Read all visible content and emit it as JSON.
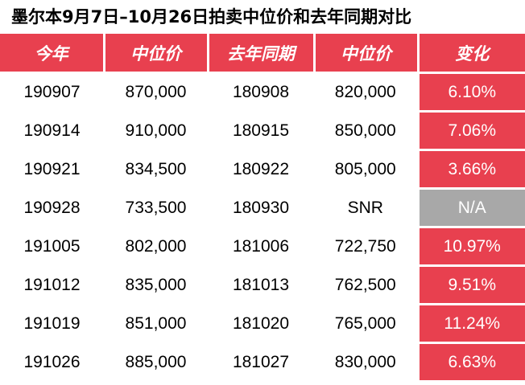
{
  "title": "墨尔本9月7日–10月26日拍卖中位价和去年同期对比",
  "colors": {
    "accent": "#e8404f",
    "na_gray": "#a8a8a8"
  },
  "table": {
    "columns": [
      "今年",
      "中位价",
      "去年同期",
      "中位价",
      "变化"
    ],
    "rows": [
      {
        "this_year": "190907",
        "median": "870,000",
        "last_year": "180908",
        "last_median": "820,000",
        "change": "6.10%"
      },
      {
        "this_year": "190914",
        "median": "910,000",
        "last_year": "180915",
        "last_median": "850,000",
        "change": "7.06%"
      },
      {
        "this_year": "190921",
        "median": "834,500",
        "last_year": "180922",
        "last_median": "805,000",
        "change": "3.66%"
      },
      {
        "this_year": "190928",
        "median": "733,500",
        "last_year": "180930",
        "last_median": "SNR",
        "change": "N/A"
      },
      {
        "this_year": "191005",
        "median": "802,000",
        "last_year": "181006",
        "last_median": "722,750",
        "change": "10.97%"
      },
      {
        "this_year": "191012",
        "median": "835,000",
        "last_year": "181013",
        "last_median": "762,500",
        "change": "9.51%"
      },
      {
        "this_year": "191019",
        "median": "851,000",
        "last_year": "181020",
        "last_median": "765,000",
        "change": "11.24%"
      },
      {
        "this_year": "191026",
        "median": "885,000",
        "last_year": "181027",
        "last_median": "830,000",
        "change": "6.63%"
      }
    ]
  }
}
